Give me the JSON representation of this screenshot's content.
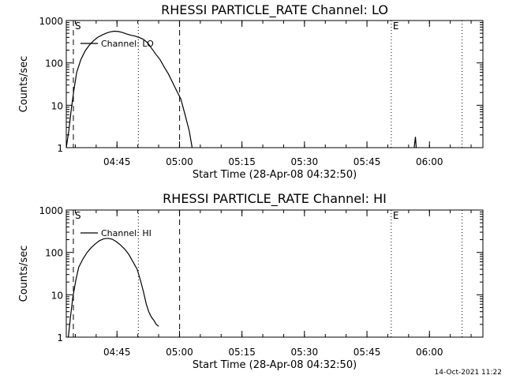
{
  "timestamp": "14-Oct-2021 11:22",
  "chart_data": [
    {
      "type": "line",
      "title": "RHESSI PARTICLE_RATE Channel: LO",
      "xlabel": "Start Time (28-Apr-08 04:32:50)",
      "ylabel": "Counts/sec",
      "y_scale": "log",
      "ylim": [
        1,
        1000
      ],
      "x_unit": "minutes since 04:32:50",
      "xlim": [
        0,
        100
      ],
      "x_ticks": [
        {
          "label": "04:45",
          "x": 12.17
        },
        {
          "label": "05:00",
          "x": 27.17
        },
        {
          "label": "05:15",
          "x": 42.17
        },
        {
          "label": "05:30",
          "x": 57.17
        },
        {
          "label": "05:45",
          "x": 72.17
        },
        {
          "label": "06:00",
          "x": 87.17
        }
      ],
      "y_ticks": [
        {
          "label": "1",
          "y": 1
        },
        {
          "label": "10",
          "y": 10
        },
        {
          "label": "100",
          "y": 100
        },
        {
          "label": "1000",
          "y": 1000
        }
      ],
      "markers": [
        {
          "label": "S",
          "x": 1.7,
          "style": "dashed"
        },
        {
          "label": "",
          "x": 17.3,
          "style": "dotted"
        },
        {
          "label": "",
          "x": 27.2,
          "style": "dashed"
        },
        {
          "label": "E",
          "x": 78.0,
          "style": "dotted"
        },
        {
          "label": "",
          "x": 95.0,
          "style": "dotted"
        }
      ],
      "series": [
        {
          "name": "Channel: LO",
          "x": [
            0,
            0.6,
            1.2,
            1.8,
            2.5,
            3.5,
            4.5,
            5.5,
            6.5,
            7.5,
            8.5,
            9.5,
            10.5,
            11.5,
            12.5,
            13.5,
            14.5,
            15.5,
            16.5,
            17.5,
            18.5,
            19.5,
            20.5,
            21.5,
            22.5,
            23.5,
            24.5,
            25.5,
            26.5,
            27.5,
            28.5,
            29.5,
            30.2
          ],
          "y": [
            1,
            2.5,
            8,
            22,
            60,
            120,
            190,
            260,
            330,
            400,
            450,
            500,
            540,
            560,
            550,
            520,
            480,
            450,
            430,
            400,
            360,
            300,
            220,
            160,
            120,
            80,
            55,
            35,
            22,
            14,
            6,
            2.5,
            1
          ]
        },
        {
          "name": "",
          "x": [
            83.5,
            83.8,
            84.0
          ],
          "y": [
            1,
            1.8,
            1
          ]
        }
      ]
    },
    {
      "type": "line",
      "title": "RHESSI PARTICLE_RATE Channel: HI",
      "xlabel": "Start Time (28-Apr-08 04:32:50)",
      "ylabel": "Counts/sec",
      "y_scale": "log",
      "ylim": [
        1,
        1000
      ],
      "x_unit": "minutes since 04:32:50",
      "xlim": [
        0,
        100
      ],
      "x_ticks": [
        {
          "label": "04:45",
          "x": 12.17
        },
        {
          "label": "05:00",
          "x": 27.17
        },
        {
          "label": "05:15",
          "x": 42.17
        },
        {
          "label": "05:30",
          "x": 57.17
        },
        {
          "label": "05:45",
          "x": 72.17
        },
        {
          "label": "06:00",
          "x": 87.17
        }
      ],
      "y_ticks": [
        {
          "label": "1",
          "y": 1
        },
        {
          "label": "10",
          "y": 10
        },
        {
          "label": "100",
          "y": 100
        },
        {
          "label": "1000",
          "y": 1000
        }
      ],
      "markers": [
        {
          "label": "S",
          "x": 1.7,
          "style": "dashed"
        },
        {
          "label": "",
          "x": 17.3,
          "style": "dotted"
        },
        {
          "label": "",
          "x": 27.2,
          "style": "dashed"
        },
        {
          "label": "E",
          "x": 78.0,
          "style": "dotted"
        },
        {
          "label": "",
          "x": 95.0,
          "style": "dotted"
        }
      ],
      "series": [
        {
          "name": "Channel: HI",
          "x": [
            0.5,
            1.0,
            1.6,
            2.3,
            3.0,
            4.0,
            5.0,
            6.0,
            7.0,
            8.0,
            9.0,
            10.0,
            11.0,
            12.0,
            13.0,
            14.0,
            15.0,
            16.0,
            17.0,
            17.8,
            18.5,
            19.2,
            19.8,
            20.4,
            21.0,
            21.6,
            22.2
          ],
          "y": [
            1,
            3,
            9,
            22,
            45,
            70,
            100,
            130,
            160,
            190,
            210,
            215,
            205,
            180,
            150,
            120,
            90,
            60,
            40,
            22,
            12,
            6,
            4,
            3,
            2.5,
            2,
            1.8
          ]
        }
      ]
    }
  ]
}
